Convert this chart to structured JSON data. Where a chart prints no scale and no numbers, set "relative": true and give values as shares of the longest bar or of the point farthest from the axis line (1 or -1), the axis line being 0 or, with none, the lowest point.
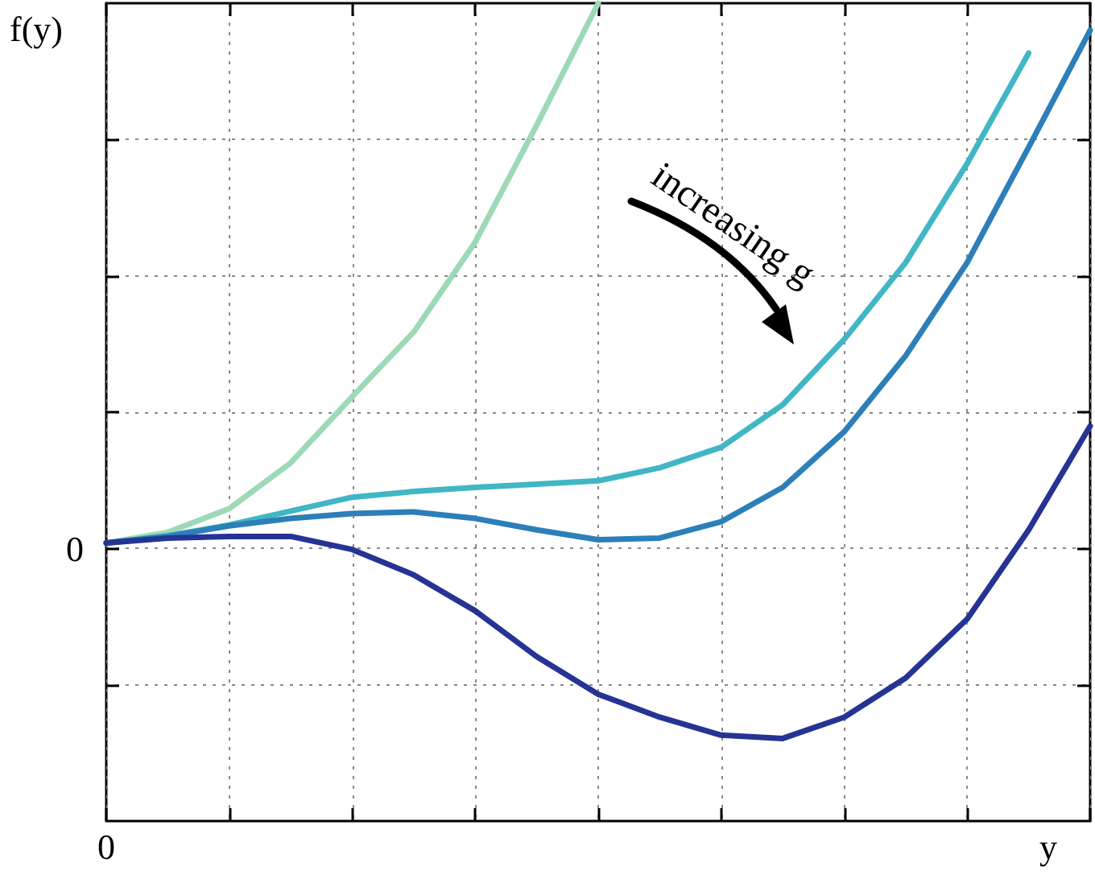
{
  "chart_data": {
    "type": "line",
    "relative": true,
    "ylabel": "f(y)",
    "xlabel": "y",
    "grid": true,
    "marker": "none",
    "line_style": "solid",
    "categories": [
      null,
      null,
      null,
      null,
      null,
      null,
      null,
      null,
      null,
      null,
      null,
      null,
      null,
      null,
      null,
      null,
      null
    ],
    "annotations": [
      "increasing g",
      "0",
      "0"
    ],
    "series": [
      {
        "color": "#9dd9b7",
        "values": [
          0.34,
          0.353,
          0.382,
          0.438,
          0.519,
          0.598,
          0.708,
          0.851,
          1,
          null,
          null,
          null,
          null,
          null,
          null,
          null,
          null
        ]
      },
      {
        "color": "#41b6c4",
        "values": [
          0.34,
          0.349,
          0.362,
          0.379,
          0.396,
          0.403,
          0.408,
          0.412,
          0.416,
          0.432,
          0.457,
          0.509,
          0.589,
          0.683,
          0.804,
          0.939,
          null
        ]
      },
      {
        "color": "#2c7fb8",
        "values": [
          0.34,
          0.348,
          0.361,
          0.37,
          0.376,
          0.378,
          0.37,
          0.356,
          0.344,
          0.346,
          0.366,
          0.408,
          0.476,
          0.569,
          0.683,
          0.824,
          0.967
        ]
      },
      {
        "color": "#253494",
        "values": [
          0.34,
          0.346,
          0.348,
          0.348,
          0.332,
          0.301,
          0.257,
          0.201,
          0.155,
          0.127,
          0.105,
          0.101,
          0.127,
          0.175,
          0.247,
          0.356,
          0.483
        ]
      }
    ]
  }
}
